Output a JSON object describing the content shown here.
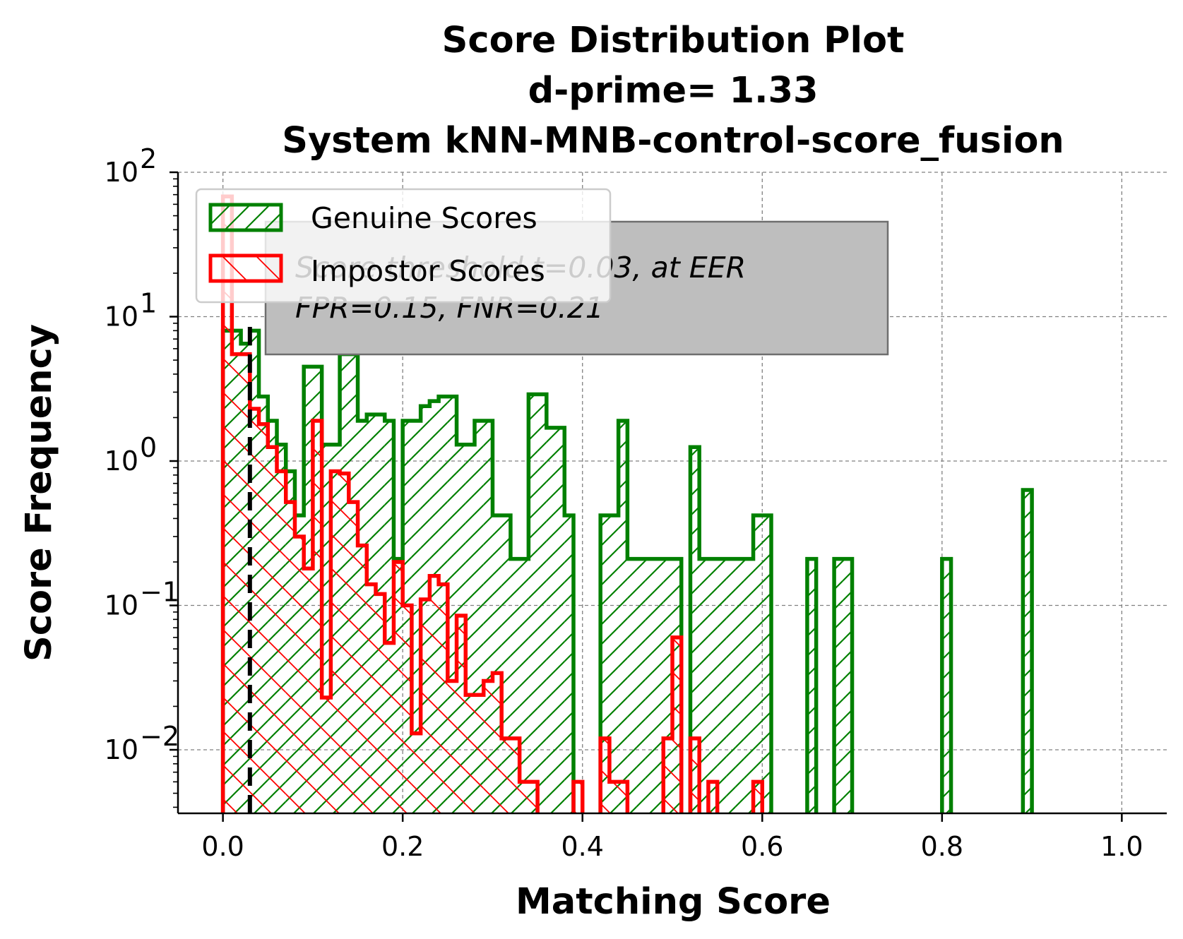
{
  "chart_data": {
    "type": "histogram",
    "title": [
      "Score Distribution Plot",
      "d-prime= 1.33",
      "System kNN-MNB-control-score_fusion"
    ],
    "xlabel": "Matching Score",
    "ylabel": "Score Frequency",
    "xlim": [
      -0.05,
      1.05
    ],
    "ylim_log10": [
      -2.44,
      2
    ],
    "yscale": "log",
    "grid": true,
    "legend_position": "upper-left",
    "xticks": [
      0.0,
      0.2,
      0.4,
      0.6,
      0.8,
      1.0
    ],
    "xtick_labels": [
      "0.0",
      "0.2",
      "0.4",
      "0.6",
      "0.8",
      "1.0"
    ],
    "ytick_exponents": [
      -2,
      -1,
      0,
      1,
      2
    ],
    "ytick_base": "10",
    "bin_width": 0.01,
    "series": [
      {
        "name": "Genuine Scores",
        "color": "#008000",
        "hatch": "/",
        "bins": [
          [
            0.0,
            0.02,
            8.0
          ],
          [
            0.02,
            0.03,
            6.5
          ],
          [
            0.03,
            0.04,
            8.0
          ],
          [
            0.04,
            0.05,
            2.8
          ],
          [
            0.05,
            0.06,
            1.9
          ],
          [
            0.06,
            0.07,
            1.3
          ],
          [
            0.07,
            0.08,
            0.85
          ],
          [
            0.08,
            0.09,
            0.42
          ],
          [
            0.09,
            0.1,
            4.5
          ],
          [
            0.1,
            0.11,
            4.5
          ],
          [
            0.11,
            0.12,
            1.3
          ],
          [
            0.12,
            0.13,
            1.3
          ],
          [
            0.13,
            0.15,
            5.5
          ],
          [
            0.15,
            0.16,
            1.9
          ],
          [
            0.16,
            0.18,
            2.1
          ],
          [
            0.18,
            0.19,
            1.9
          ],
          [
            0.19,
            0.2,
            0.21
          ],
          [
            0.2,
            0.21,
            1.9
          ],
          [
            0.21,
            0.22,
            1.9
          ],
          [
            0.22,
            0.23,
            2.4
          ],
          [
            0.23,
            0.24,
            2.6
          ],
          [
            0.24,
            0.25,
            2.8
          ],
          [
            0.25,
            0.26,
            2.8
          ],
          [
            0.26,
            0.27,
            1.3
          ],
          [
            0.27,
            0.28,
            1.3
          ],
          [
            0.28,
            0.29,
            1.9
          ],
          [
            0.29,
            0.3,
            1.9
          ],
          [
            0.3,
            0.31,
            0.42
          ],
          [
            0.31,
            0.32,
            0.42
          ],
          [
            0.32,
            0.33,
            0.21
          ],
          [
            0.33,
            0.34,
            0.21
          ],
          [
            0.34,
            0.35,
            2.9
          ],
          [
            0.35,
            0.36,
            2.9
          ],
          [
            0.36,
            0.37,
            1.7
          ],
          [
            0.37,
            0.38,
            1.7
          ],
          [
            0.38,
            0.39,
            0.42
          ],
          [
            0.39,
            0.4,
            0.0
          ],
          [
            0.4,
            0.41,
            0.0
          ],
          [
            0.41,
            0.42,
            0.0
          ],
          [
            0.42,
            0.43,
            0.42
          ],
          [
            0.43,
            0.44,
            0.42
          ],
          [
            0.44,
            0.45,
            1.9
          ],
          [
            0.45,
            0.46,
            0.21
          ],
          [
            0.46,
            0.47,
            0.21
          ],
          [
            0.47,
            0.48,
            0.21
          ],
          [
            0.48,
            0.49,
            0.21
          ],
          [
            0.49,
            0.5,
            0.21
          ],
          [
            0.5,
            0.51,
            0.21
          ],
          [
            0.51,
            0.52,
            0.0
          ],
          [
            0.52,
            0.53,
            1.25
          ],
          [
            0.53,
            0.54,
            0.21
          ],
          [
            0.54,
            0.55,
            0.21
          ],
          [
            0.55,
            0.56,
            0.21
          ],
          [
            0.56,
            0.57,
            0.21
          ],
          [
            0.57,
            0.58,
            0.21
          ],
          [
            0.58,
            0.59,
            0.21
          ],
          [
            0.59,
            0.6,
            0.42
          ],
          [
            0.6,
            0.61,
            0.42
          ],
          [
            0.65,
            0.66,
            0.21
          ],
          [
            0.68,
            0.69,
            0.21
          ],
          [
            0.69,
            0.7,
            0.21
          ],
          [
            0.8,
            0.81,
            0.21
          ],
          [
            0.89,
            0.9,
            0.63
          ]
        ]
      },
      {
        "name": "Impostor Scores",
        "color": "#ff0000",
        "hatch": "\\",
        "bins": [
          [
            0.0,
            0.01,
            68.0
          ],
          [
            0.01,
            0.02,
            5.5
          ],
          [
            0.02,
            0.03,
            5.5
          ],
          [
            0.03,
            0.04,
            2.3
          ],
          [
            0.04,
            0.05,
            1.8
          ],
          [
            0.05,
            0.06,
            1.25
          ],
          [
            0.06,
            0.07,
            0.85
          ],
          [
            0.07,
            0.08,
            0.52
          ],
          [
            0.08,
            0.09,
            0.3
          ],
          [
            0.09,
            0.1,
            0.18
          ],
          [
            0.1,
            0.11,
            1.9
          ],
          [
            0.11,
            0.12,
            0.023
          ],
          [
            0.12,
            0.13,
            0.85
          ],
          [
            0.13,
            0.14,
            0.82
          ],
          [
            0.14,
            0.15,
            0.52
          ],
          [
            0.15,
            0.16,
            0.26
          ],
          [
            0.16,
            0.17,
            0.14
          ],
          [
            0.17,
            0.18,
            0.12
          ],
          [
            0.18,
            0.19,
            0.055
          ],
          [
            0.19,
            0.2,
            0.2
          ],
          [
            0.2,
            0.21,
            0.1
          ],
          [
            0.21,
            0.22,
            0.013
          ],
          [
            0.22,
            0.23,
            0.11
          ],
          [
            0.23,
            0.24,
            0.16
          ],
          [
            0.24,
            0.25,
            0.14
          ],
          [
            0.25,
            0.26,
            0.03
          ],
          [
            0.26,
            0.27,
            0.085
          ],
          [
            0.27,
            0.28,
            0.024
          ],
          [
            0.28,
            0.29,
            0.024
          ],
          [
            0.29,
            0.3,
            0.03
          ],
          [
            0.3,
            0.31,
            0.034
          ],
          [
            0.31,
            0.32,
            0.012
          ],
          [
            0.32,
            0.33,
            0.012
          ],
          [
            0.33,
            0.34,
            0.006
          ],
          [
            0.34,
            0.35,
            0.006
          ],
          [
            0.35,
            0.36,
            0.0
          ],
          [
            0.36,
            0.37,
            0.0
          ],
          [
            0.37,
            0.38,
            0.0
          ],
          [
            0.38,
            0.39,
            0.0
          ],
          [
            0.39,
            0.4,
            0.006
          ],
          [
            0.4,
            0.41,
            0.0
          ],
          [
            0.41,
            0.42,
            0.0
          ],
          [
            0.42,
            0.43,
            0.012
          ],
          [
            0.43,
            0.44,
            0.006
          ],
          [
            0.44,
            0.45,
            0.006
          ],
          [
            0.45,
            0.46,
            0.0
          ],
          [
            0.46,
            0.47,
            0.0
          ],
          [
            0.47,
            0.48,
            0.0
          ],
          [
            0.48,
            0.49,
            0.0
          ],
          [
            0.49,
            0.5,
            0.012
          ],
          [
            0.5,
            0.51,
            0.06
          ],
          [
            0.51,
            0.52,
            0.0
          ],
          [
            0.52,
            0.53,
            0.012
          ],
          [
            0.53,
            0.54,
            0.0
          ],
          [
            0.54,
            0.55,
            0.006
          ],
          [
            0.55,
            0.56,
            0.0
          ],
          [
            0.56,
            0.57,
            0.0
          ],
          [
            0.57,
            0.58,
            0.0
          ],
          [
            0.58,
            0.59,
            0.0
          ],
          [
            0.59,
            0.6,
            0.006
          ]
        ]
      }
    ],
    "threshold_line": {
      "x": 0.03,
      "style": "dashed",
      "color": "#000000"
    },
    "annotation": [
      "Score threshold t=0.03, at EER",
      "FPR=0.15, FNR=0.21"
    ]
  }
}
